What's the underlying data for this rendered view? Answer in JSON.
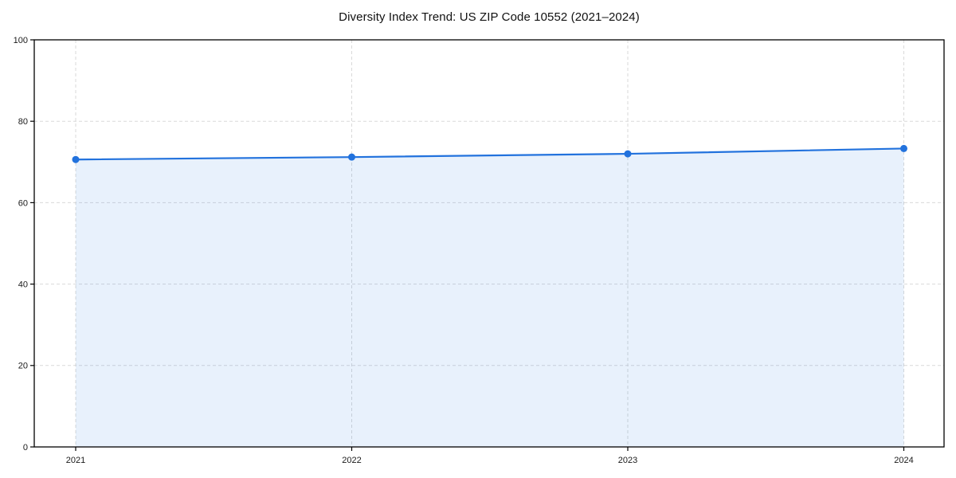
{
  "chart_data": {
    "type": "area",
    "title": "Diversity Index Trend: US ZIP Code 10552 (2021–2024)",
    "series_name": "Diversity Index",
    "x": [
      2021,
      2022,
      2023,
      2024
    ],
    "values": [
      70.6,
      71.2,
      72.0,
      73.3
    ],
    "xlabel": "",
    "ylabel": "",
    "ylim": [
      0,
      100
    ],
    "yticks": [
      0,
      20,
      40,
      60,
      80,
      100
    ],
    "xtick_labels": [
      "2021",
      "2022",
      "2023",
      "2024"
    ],
    "grid": true,
    "grid_style": "dashed",
    "legend": "none",
    "colors": {
      "line": "#2272dd",
      "marker": "#2272dd",
      "fill": "#2272dd",
      "fill_opacity": 0.1,
      "grid": "#d9d9d9",
      "spine": "#000000",
      "tick_text": "#1a1a1a",
      "background": "#ffffff"
    }
  }
}
